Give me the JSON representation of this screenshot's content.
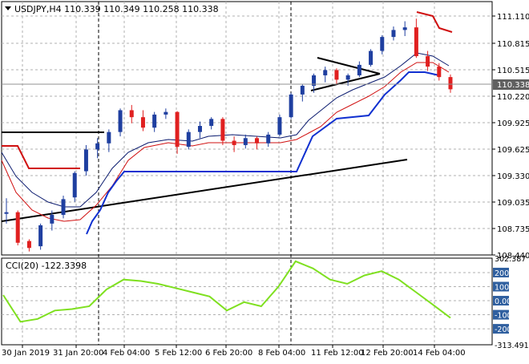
{
  "symbol_header": "USDJPY,H4  110.339 110.349 110.258 110.338",
  "price_axis": {
    "labels": [
      "111.110",
      "110.815",
      "110.515",
      "110.220",
      "109.925",
      "109.625",
      "109.330",
      "109.035",
      "108.735",
      "108.440"
    ],
    "current_price": "110.338"
  },
  "indicator": {
    "title": "CCI(20) -122.3398",
    "axis_labels": [
      "302.387",
      "200",
      "100",
      "0.00",
      "-100",
      "-200",
      "-313.4915"
    ]
  },
  "time_axis": [
    "30 Jan 2019",
    "31 Jan 20:00",
    "4 Feb 04:00",
    "5 Feb 12:00",
    "6 Feb 20:00",
    "8 Feb 04:00",
    "11 Feb 12:00",
    "12 Feb 20:00",
    "14 Feb 04:00"
  ],
  "colors": {
    "bull_candle": "#1f3fa0",
    "bear_candle": "#e02020",
    "upper_band": "#d01010",
    "middle_line": "#0a1a6e",
    "lower_band": "#1030d0",
    "trendline": "#000000",
    "cci_line": "#7fe020",
    "cci_level_box": "#2f5f9f"
  },
  "chart_data": {
    "type": "candlestick",
    "title": "USDJPY,H4",
    "ohlc": [
      [
        108.92,
        109.09,
        108.8,
        108.93
      ],
      [
        108.93,
        108.95,
        108.55,
        108.58
      ],
      [
        108.6,
        108.62,
        108.48,
        108.52
      ],
      [
        108.54,
        108.8,
        108.5,
        108.78
      ],
      [
        108.8,
        108.95,
        108.72,
        108.9
      ],
      [
        108.9,
        109.12,
        108.86,
        109.08
      ],
      [
        109.1,
        109.4,
        109.05,
        109.38
      ],
      [
        109.4,
        109.7,
        109.35,
        109.65
      ],
      [
        109.65,
        109.78,
        109.55,
        109.72
      ],
      [
        109.72,
        109.88,
        109.62,
        109.85
      ],
      [
        109.85,
        110.12,
        109.8,
        110.1
      ],
      [
        110.1,
        110.16,
        109.95,
        110.02
      ],
      [
        110.02,
        110.1,
        109.86,
        109.9
      ],
      [
        109.9,
        110.08,
        109.85,
        110.05
      ],
      [
        110.05,
        110.12,
        110.0,
        110.08
      ],
      [
        110.08,
        110.09,
        109.6,
        109.68
      ],
      [
        109.68,
        109.88,
        109.65,
        109.85
      ],
      [
        109.85,
        109.97,
        109.78,
        109.92
      ],
      [
        109.92,
        110.02,
        109.88,
        110.0
      ],
      [
        110.0,
        110.02,
        109.7,
        109.75
      ],
      [
        109.75,
        109.8,
        109.62,
        109.7
      ],
      [
        109.7,
        109.82,
        109.66,
        109.78
      ],
      [
        109.78,
        109.8,
        109.65,
        109.72
      ],
      [
        109.72,
        109.85,
        109.68,
        109.82
      ],
      [
        109.82,
        110.05,
        109.8,
        110.02
      ],
      [
        110.02,
        110.3,
        110.0,
        110.28
      ],
      [
        110.28,
        110.4,
        110.2,
        110.38
      ],
      [
        110.38,
        110.52,
        110.3,
        110.5
      ],
      [
        110.5,
        110.6,
        110.42,
        110.56
      ],
      [
        110.56,
        110.58,
        110.4,
        110.45
      ],
      [
        110.45,
        110.52,
        110.38,
        110.5
      ],
      [
        110.5,
        110.66,
        110.48,
        110.62
      ],
      [
        110.62,
        110.8,
        110.6,
        110.78
      ],
      [
        110.78,
        110.96,
        110.74,
        110.94
      ],
      [
        110.94,
        111.06,
        110.9,
        111.02
      ],
      [
        111.02,
        111.12,
        110.95,
        111.05
      ],
      [
        111.05,
        111.15,
        110.7,
        110.72
      ],
      [
        110.72,
        110.78,
        110.55,
        110.6
      ],
      [
        110.6,
        110.64,
        110.44,
        110.48
      ],
      [
        110.48,
        110.51,
        110.3,
        110.34
      ]
    ],
    "cci": [
      40,
      -150,
      -130,
      -70,
      -60,
      -40,
      80,
      150,
      140,
      120,
      90,
      60,
      30,
      -70,
      -10,
      -40,
      100,
      280,
      230,
      150,
      120,
      180,
      210,
      150,
      60,
      -30,
      -122
    ],
    "ylim": [
      108.44,
      111.25
    ],
    "cci_ylim": [
      -313.4915,
      302.387
    ]
  }
}
